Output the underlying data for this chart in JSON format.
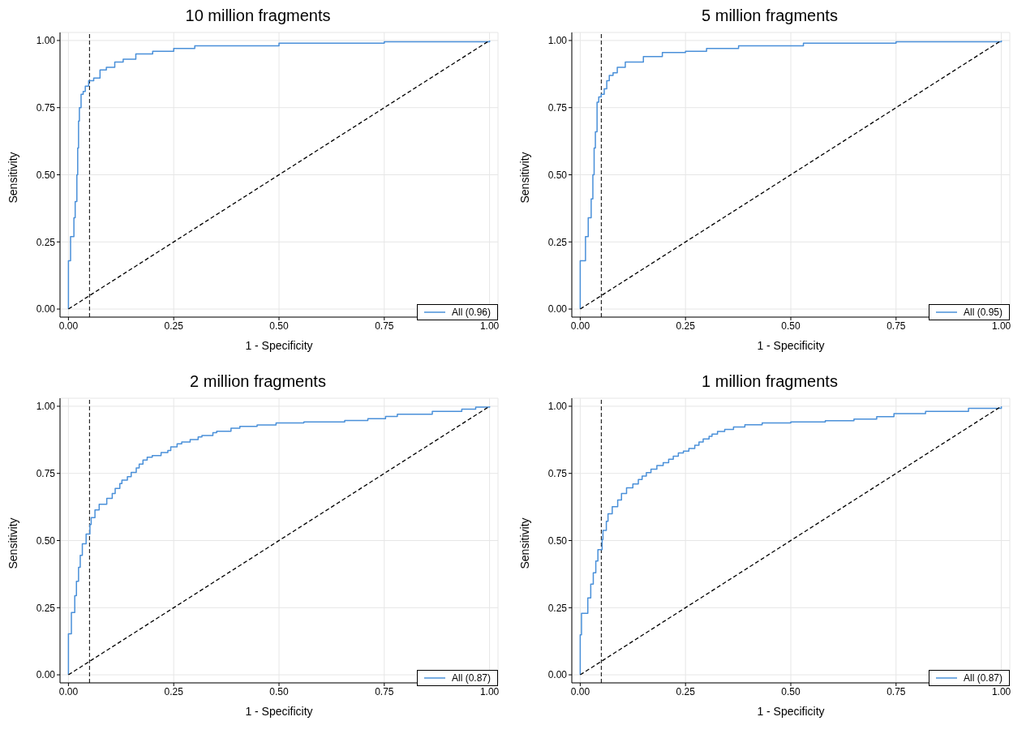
{
  "chart_data": [
    {
      "type": "step",
      "title": "10 million fragments",
      "xlabel": "1 - Specificity",
      "ylabel": "Sensitivity",
      "xlim": [
        -0.02,
        1.02
      ],
      "ylim": [
        -0.03,
        1.03
      ],
      "xticks": [
        {
          "value": 0,
          "label": "0.00"
        },
        {
          "value": 0.25,
          "label": "0.25"
        },
        {
          "value": 0.5,
          "label": "0.50"
        },
        {
          "value": 0.75,
          "label": "0.75"
        },
        {
          "value": 1,
          "label": "1.00"
        }
      ],
      "yticks": [
        {
          "value": 0,
          "label": "0.00"
        },
        {
          "value": 0.25,
          "label": "0.25"
        },
        {
          "value": 0.5,
          "label": "0.50"
        },
        {
          "value": 0.75,
          "label": "0.75"
        },
        {
          "value": 1,
          "label": "1.00"
        }
      ],
      "grid": true,
      "legend": "bottom right",
      "ref_lines": [
        {
          "axis": "x",
          "value": 0.05,
          "color": "#000000",
          "line_style": "dashed"
        }
      ],
      "series": [
        {
          "name": "All (0.96)",
          "color": "#4a90d9",
          "x": [
            0,
            0,
            0.005,
            0.013,
            0.016,
            0.02,
            0.022,
            0.024,
            0.026,
            0.03,
            0.035,
            0.04,
            0.048,
            0.06,
            0.075,
            0.09,
            0.11,
            0.13,
            0.16,
            0.2,
            0.25,
            0.3,
            0.5,
            0.75,
            1
          ],
          "values": [
            0,
            0.18,
            0.27,
            0.34,
            0.4,
            0.5,
            0.6,
            0.7,
            0.75,
            0.8,
            0.81,
            0.83,
            0.85,
            0.86,
            0.89,
            0.9,
            0.92,
            0.93,
            0.95,
            0.96,
            0.97,
            0.98,
            0.99,
            0.995,
            1
          ]
        },
        {
          "type": "line",
          "color": "#000000",
          "line_style": "dashed",
          "x": [
            0,
            1
          ],
          "values": [
            0,
            1
          ]
        }
      ]
    },
    {
      "type": "step",
      "title": "5 million fragments",
      "xlabel": "1 - Specificity",
      "ylabel": "Sensitivity",
      "xlim": [
        -0.02,
        1.02
      ],
      "ylim": [
        -0.03,
        1.03
      ],
      "xticks": [
        {
          "value": 0,
          "label": "0.00"
        },
        {
          "value": 0.25,
          "label": "0.25"
        },
        {
          "value": 0.5,
          "label": "0.50"
        },
        {
          "value": 0.75,
          "label": "0.75"
        },
        {
          "value": 1,
          "label": "1.00"
        }
      ],
      "yticks": [
        {
          "value": 0,
          "label": "0.00"
        },
        {
          "value": 0.25,
          "label": "0.25"
        },
        {
          "value": 0.5,
          "label": "0.50"
        },
        {
          "value": 0.75,
          "label": "0.75"
        },
        {
          "value": 1,
          "label": "1.00"
        }
      ],
      "grid": true,
      "legend": "bottom right",
      "ref_lines": [
        {
          "axis": "x",
          "value": 0.05,
          "color": "#000000",
          "line_style": "dashed"
        }
      ],
      "series": [
        {
          "name": "All (0.95)",
          "color": "#4a90d9",
          "x": [
            0,
            0,
            0.0125,
            0.019,
            0.026,
            0.03,
            0.033,
            0.036,
            0.04,
            0.044,
            0.05,
            0.057,
            0.063,
            0.069,
            0.078,
            0.088,
            0.107,
            0.15,
            0.195,
            0.25,
            0.3,
            0.376,
            0.53,
            0.75,
            1
          ],
          "values": [
            0,
            0.18,
            0.27,
            0.34,
            0.41,
            0.5,
            0.6,
            0.66,
            0.77,
            0.79,
            0.8,
            0.82,
            0.85,
            0.87,
            0.88,
            0.9,
            0.92,
            0.94,
            0.955,
            0.96,
            0.97,
            0.98,
            0.99,
            0.995,
            1
          ]
        },
        {
          "type": "line",
          "color": "#000000",
          "line_style": "dashed",
          "x": [
            0,
            1
          ],
          "values": [
            0,
            1
          ]
        }
      ]
    },
    {
      "type": "step",
      "title": "2 million fragments",
      "xlabel": "1 - Specificity",
      "ylabel": "Sensitivity",
      "xlim": [
        -0.02,
        1.02
      ],
      "ylim": [
        -0.03,
        1.03
      ],
      "xticks": [
        {
          "value": 0,
          "label": "0.00"
        },
        {
          "value": 0.25,
          "label": "0.25"
        },
        {
          "value": 0.5,
          "label": "0.50"
        },
        {
          "value": 0.75,
          "label": "0.75"
        },
        {
          "value": 1,
          "label": "1.00"
        }
      ],
      "yticks": [
        {
          "value": 0,
          "label": "0.00"
        },
        {
          "value": 0.25,
          "label": "0.25"
        },
        {
          "value": 0.5,
          "label": "0.50"
        },
        {
          "value": 0.75,
          "label": "0.75"
        },
        {
          "value": 1,
          "label": "1.00"
        }
      ],
      "grid": true,
      "legend": "bottom right",
      "ref_lines": [
        {
          "axis": "x",
          "value": 0.05,
          "color": "#000000",
          "line_style": "dashed"
        }
      ],
      "series": [
        {
          "name": "All (0.87)",
          "color": "#4a90d9",
          "x": [
            0,
            0,
            0.007,
            0.015,
            0.019,
            0.024,
            0.028,
            0.033,
            0.042,
            0.051,
            0.054,
            0.063,
            0.073,
            0.091,
            0.104,
            0.111,
            0.122,
            0.127,
            0.14,
            0.149,
            0.161,
            0.168,
            0.177,
            0.187,
            0.199,
            0.22,
            0.236,
            0.243,
            0.258,
            0.269,
            0.289,
            0.308,
            0.317,
            0.343,
            0.352,
            0.386,
            0.407,
            0.448,
            0.493,
            0.559,
            0.656,
            0.711,
            0.753,
            0.781,
            0.864,
            0.934,
            0.967,
            1
          ],
          "values": [
            0,
            0.153,
            0.232,
            0.295,
            0.348,
            0.4,
            0.445,
            0.488,
            0.524,
            0.56,
            0.585,
            0.614,
            0.635,
            0.657,
            0.675,
            0.694,
            0.712,
            0.725,
            0.738,
            0.754,
            0.77,
            0.785,
            0.8,
            0.81,
            0.816,
            0.828,
            0.835,
            0.849,
            0.86,
            0.867,
            0.876,
            0.886,
            0.891,
            0.902,
            0.907,
            0.918,
            0.925,
            0.93,
            0.938,
            0.942,
            0.947,
            0.954,
            0.962,
            0.97,
            0.981,
            0.989,
            0.997,
            1
          ]
        },
        {
          "type": "line",
          "color": "#000000",
          "line_style": "dashed",
          "x": [
            0,
            1
          ],
          "values": [
            0,
            1
          ]
        }
      ]
    },
    {
      "type": "step",
      "title": "1 million fragments",
      "xlabel": "1 - Specificity",
      "ylabel": "Sensitivity",
      "xlim": [
        -0.02,
        1.02
      ],
      "ylim": [
        -0.03,
        1.03
      ],
      "xticks": [
        {
          "value": 0,
          "label": "0.00"
        },
        {
          "value": 0.25,
          "label": "0.25"
        },
        {
          "value": 0.5,
          "label": "0.50"
        },
        {
          "value": 0.75,
          "label": "0.75"
        },
        {
          "value": 1,
          "label": "1.00"
        }
      ],
      "yticks": [
        {
          "value": 0,
          "label": "0.00"
        },
        {
          "value": 0.25,
          "label": "0.25"
        },
        {
          "value": 0.5,
          "label": "0.50"
        },
        {
          "value": 0.75,
          "label": "0.75"
        },
        {
          "value": 1,
          "label": "1.00"
        }
      ],
      "grid": true,
      "legend": "bottom right",
      "ref_lines": [
        {
          "axis": "x",
          "value": 0.05,
          "color": "#000000",
          "line_style": "dashed"
        }
      ],
      "series": [
        {
          "name": "All (0.87)",
          "color": "#4a90d9",
          "x": [
            0,
            0,
            0.003,
            0.018,
            0.025,
            0.031,
            0.037,
            0.042,
            0.052,
            0.054,
            0.062,
            0.066,
            0.076,
            0.089,
            0.098,
            0.11,
            0.125,
            0.138,
            0.147,
            0.157,
            0.168,
            0.182,
            0.197,
            0.21,
            0.221,
            0.233,
            0.245,
            0.258,
            0.272,
            0.282,
            0.292,
            0.306,
            0.313,
            0.326,
            0.343,
            0.364,
            0.391,
            0.432,
            0.5,
            0.582,
            0.65,
            0.704,
            0.745,
            0.82,
            0.922,
            1
          ],
          "values": [
            0,
            0.149,
            0.229,
            0.286,
            0.338,
            0.38,
            0.424,
            0.466,
            0.504,
            0.538,
            0.572,
            0.6,
            0.626,
            0.651,
            0.675,
            0.696,
            0.711,
            0.727,
            0.74,
            0.753,
            0.766,
            0.779,
            0.79,
            0.803,
            0.814,
            0.826,
            0.833,
            0.843,
            0.855,
            0.867,
            0.878,
            0.888,
            0.896,
            0.906,
            0.914,
            0.923,
            0.931,
            0.938,
            0.942,
            0.946,
            0.952,
            0.961,
            0.973,
            0.981,
            0.992,
            1
          ]
        },
        {
          "type": "line",
          "color": "#000000",
          "line_style": "dashed",
          "x": [
            0,
            1
          ],
          "values": [
            0,
            1
          ]
        }
      ]
    }
  ]
}
